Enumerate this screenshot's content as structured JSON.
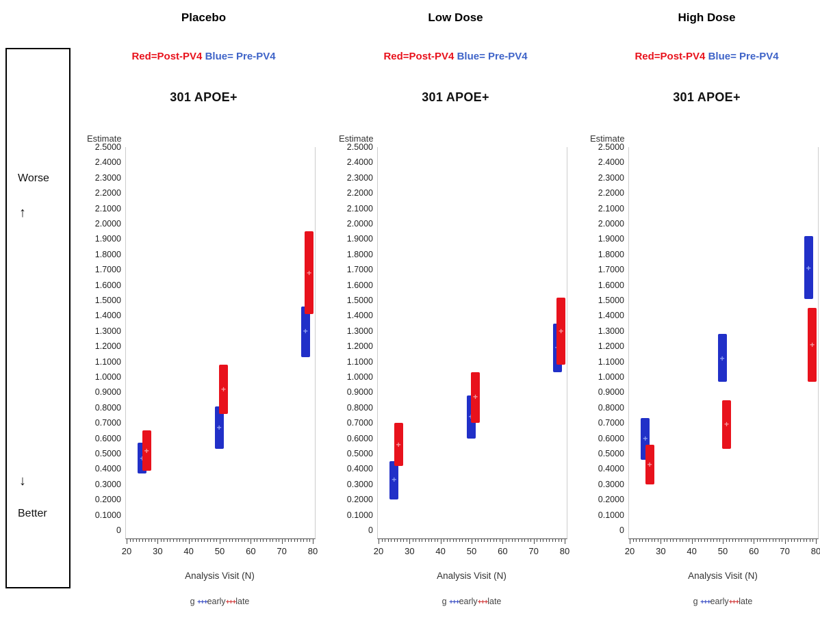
{
  "sidebar": {
    "worse_label": "Worse",
    "up_arrow": "↑",
    "down_arrow": "↓",
    "better_label": "Better"
  },
  "panels": [
    {
      "title": "Placebo",
      "legend_red": "Red=Post-PV4",
      "legend_blue": "Blue= Pre-PV4",
      "subtitle": "301 APOE+"
    },
    {
      "title": "Low Dose",
      "legend_red": "Red=Post-PV4",
      "legend_blue": "Blue= Pre-PV4",
      "subtitle": "301 APOE+"
    },
    {
      "title": "High Dose",
      "legend_red": "Red=Post-PV4",
      "legend_blue": "Blue= Pre-PV4",
      "subtitle": "301 APOE+"
    }
  ],
  "group_legend": {
    "prefix": "g",
    "early_marker": "+++",
    "early_label": "early",
    "late_marker": "+++",
    "late_label": "late"
  },
  "colors": {
    "red": "#e8121c",
    "blue": "#2130c8",
    "legend_blue_text": "#3f64c8",
    "mean_red": "#f49a9e",
    "mean_blue": "#8e9ef0"
  },
  "axes": {
    "xlabel": "Analysis Visit (N)",
    "ylabel": "Estimate",
    "xlim": [
      20,
      80
    ],
    "ylim": [
      0,
      2.5
    ],
    "xticks": [
      20,
      30,
      40,
      50,
      60,
      70,
      80
    ],
    "minor_x_step": 1,
    "yticks": [
      {
        "v": 0,
        "label": "0"
      },
      {
        "v": 0.1,
        "label": "0.1000"
      },
      {
        "v": 0.2,
        "label": "0.2000"
      },
      {
        "v": 0.3,
        "label": "0.3000"
      },
      {
        "v": 0.4,
        "label": "0.4000"
      },
      {
        "v": 0.5,
        "label": "0.5000"
      },
      {
        "v": 0.6,
        "label": "0.6000"
      },
      {
        "v": 0.7,
        "label": "0.7000"
      },
      {
        "v": 0.8,
        "label": "0.8000"
      },
      {
        "v": 0.9,
        "label": "0.9000"
      },
      {
        "v": 1.0,
        "label": "1.0000"
      },
      {
        "v": 1.1,
        "label": "1.1000"
      },
      {
        "v": 1.2,
        "label": "1.2000"
      },
      {
        "v": 1.3,
        "label": "1.3000"
      },
      {
        "v": 1.4,
        "label": "1.4000"
      },
      {
        "v": 1.5,
        "label": "1.5000"
      },
      {
        "v": 1.6,
        "label": "1.6000"
      },
      {
        "v": 1.7,
        "label": "1.7000"
      },
      {
        "v": 1.8,
        "label": "1.8000"
      },
      {
        "v": 1.9,
        "label": "1.9000"
      },
      {
        "v": 2.0,
        "label": "2.0000"
      },
      {
        "v": 2.1,
        "label": "2.1000"
      },
      {
        "v": 2.2,
        "label": "2.2000"
      },
      {
        "v": 2.3,
        "label": "2.3000"
      },
      {
        "v": 2.4,
        "label": "2.4000"
      },
      {
        "v": 2.5,
        "label": "2.5000"
      }
    ]
  },
  "chart_data": [
    {
      "type": "bar",
      "title": "Placebo",
      "subtitle": "301 APOE+",
      "xlabel": "Analysis Visit (N)",
      "ylabel": "Estimate",
      "xlim": [
        20,
        80
      ],
      "ylim": [
        0,
        2.5
      ],
      "series": [
        {
          "name": "Pre-PV4",
          "color": "#2130c8",
          "mean_color": "#8e9ef0",
          "points": [
            {
              "x": 24.8,
              "low": 0.37,
              "high": 0.57,
              "mid": 0.47
            },
            {
              "x": 49.6,
              "low": 0.53,
              "high": 0.81,
              "mid": 0.67
            },
            {
              "x": 77.4,
              "low": 1.13,
              "high": 1.46,
              "mid": 1.3
            }
          ]
        },
        {
          "name": "Post-PV4",
          "color": "#e8121c",
          "mean_color": "#f49a9e",
          "points": [
            {
              "x": 26.2,
              "low": 0.39,
              "high": 0.65,
              "mid": 0.52
            },
            {
              "x": 51.0,
              "low": 0.76,
              "high": 1.08,
              "mid": 0.92
            },
            {
              "x": 78.6,
              "low": 1.41,
              "high": 1.95,
              "mid": 1.68
            }
          ]
        }
      ]
    },
    {
      "type": "bar",
      "title": "Low Dose",
      "subtitle": "301 APOE+",
      "xlabel": "Analysis Visit (N)",
      "ylabel": "Estimate",
      "xlim": [
        20,
        80
      ],
      "ylim": [
        0,
        2.5
      ],
      "series": [
        {
          "name": "Pre-PV4",
          "color": "#2130c8",
          "mean_color": "#8e9ef0",
          "points": [
            {
              "x": 24.8,
              "low": 0.2,
              "high": 0.45,
              "mid": 0.33
            },
            {
              "x": 49.6,
              "low": 0.6,
              "high": 0.88,
              "mid": 0.74
            },
            {
              "x": 77.4,
              "low": 1.03,
              "high": 1.35,
              "mid": 1.19
            }
          ]
        },
        {
          "name": "Post-PV4",
          "color": "#e8121c",
          "mean_color": "#f49a9e",
          "points": [
            {
              "x": 26.2,
              "low": 0.42,
              "high": 0.7,
              "mid": 0.56
            },
            {
              "x": 51.0,
              "low": 0.7,
              "high": 1.03,
              "mid": 0.87
            },
            {
              "x": 78.6,
              "low": 1.08,
              "high": 1.52,
              "mid": 1.3
            }
          ]
        }
      ]
    },
    {
      "type": "bar",
      "title": "High Dose",
      "subtitle": "301 APOE+",
      "xlabel": "Analysis Visit (N)",
      "ylabel": "Estimate",
      "xlim": [
        20,
        80
      ],
      "ylim": [
        0,
        2.5
      ],
      "series": [
        {
          "name": "Pre-PV4",
          "color": "#2130c8",
          "mean_color": "#8e9ef0",
          "points": [
            {
              "x": 24.8,
              "low": 0.46,
              "high": 0.73,
              "mid": 0.6
            },
            {
              "x": 49.6,
              "low": 0.97,
              "high": 1.28,
              "mid": 1.12
            },
            {
              "x": 77.4,
              "low": 1.51,
              "high": 1.92,
              "mid": 1.71
            }
          ]
        },
        {
          "name": "Post-PV4",
          "color": "#e8121c",
          "mean_color": "#f49a9e",
          "points": [
            {
              "x": 26.2,
              "low": 0.3,
              "high": 0.56,
              "mid": 0.43
            },
            {
              "x": 51.0,
              "low": 0.53,
              "high": 0.85,
              "mid": 0.69
            },
            {
              "x": 78.6,
              "low": 0.97,
              "high": 1.45,
              "mid": 1.21
            }
          ]
        }
      ]
    }
  ]
}
